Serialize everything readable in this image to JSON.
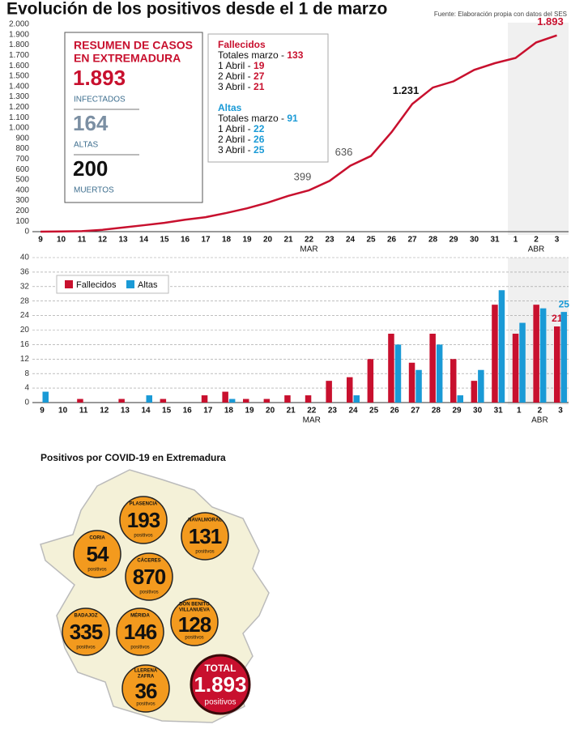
{
  "title": "Evolución de los positivos desde el 1 de marzo",
  "source": "Fuente: Elaboración propia con datos del SES",
  "chart_data": [
    {
      "type": "line",
      "categories": [
        "9",
        "10",
        "11",
        "12",
        "13",
        "14",
        "15",
        "16",
        "17",
        "18",
        "19",
        "20",
        "21",
        "22",
        "23",
        "24",
        "25",
        "26",
        "27",
        "28",
        "29",
        "30",
        "31",
        "1",
        "2",
        "3"
      ],
      "x_groups": [
        "MAR",
        "ABR"
      ],
      "values": [
        0,
        2,
        5,
        18,
        40,
        62,
        85,
        115,
        140,
        180,
        225,
        280,
        345,
        399,
        490,
        636,
        730,
        960,
        1231,
        1390,
        1450,
        1560,
        1625,
        1675,
        1825,
        1893
      ],
      "value_labels": [
        null,
        null,
        null,
        null,
        null,
        null,
        null,
        null,
        null,
        null,
        null,
        null,
        null,
        "399",
        null,
        "636",
        null,
        null,
        "1.231",
        null,
        null,
        null,
        null,
        null,
        null,
        "1.893"
      ],
      "color": "#c8102e",
      "ylim": [
        0,
        2000
      ],
      "yticks": [
        0,
        100,
        200,
        300,
        400,
        500,
        600,
        700,
        800,
        900,
        {
          "value": 1000,
          "label": "1.000"
        },
        {
          "value": 1100,
          "label": "1.100"
        },
        {
          "value": 1200,
          "label": "1.200"
        },
        {
          "value": 1300,
          "label": "1.300"
        },
        {
          "value": 1400,
          "label": "1.400"
        },
        {
          "value": 1500,
          "label": "1.500"
        },
        {
          "value": 1600,
          "label": "1.600"
        },
        {
          "value": 1700,
          "label": "1.700"
        },
        {
          "value": 1800,
          "label": "1.800"
        },
        {
          "value": 1900,
          "label": "1.900"
        },
        {
          "value": 2000,
          "label": "2.000"
        }
      ],
      "grid": false
    },
    {
      "type": "bar",
      "categories": [
        "9",
        "10",
        "11",
        "12",
        "13",
        "14",
        "15",
        "16",
        "17",
        "18",
        "19",
        "20",
        "21",
        "22",
        "23",
        "24",
        "25",
        "26",
        "27",
        "28",
        "29",
        "30",
        "31",
        "1",
        "2",
        "3"
      ],
      "x_groups": [
        "MAR",
        "ABR"
      ],
      "series": [
        {
          "name": "Fallecidos",
          "color": "#c8102e",
          "values": [
            0,
            0,
            1,
            0,
            1,
            0,
            1,
            0,
            2,
            3,
            1,
            1,
            2,
            2,
            6,
            7,
            12,
            19,
            11,
            19,
            12,
            6,
            27,
            19,
            27,
            21
          ],
          "value_labels": [
            null,
            null,
            null,
            null,
            null,
            null,
            null,
            null,
            null,
            null,
            null,
            null,
            null,
            null,
            null,
            null,
            null,
            null,
            null,
            null,
            null,
            null,
            null,
            null,
            null,
            "21"
          ]
        },
        {
          "name": "Altas",
          "color": "#1a9ad6",
          "values": [
            3,
            0,
            0,
            0,
            0,
            2,
            0,
            0,
            0,
            1,
            0,
            0,
            0,
            0,
            0,
            2,
            0,
            16,
            9,
            16,
            2,
            9,
            31,
            22,
            26,
            25
          ],
          "value_labels": [
            null,
            null,
            null,
            null,
            null,
            null,
            null,
            null,
            null,
            null,
            null,
            null,
            null,
            null,
            null,
            null,
            null,
            null,
            null,
            null,
            null,
            null,
            null,
            null,
            null,
            "25"
          ]
        }
      ],
      "ylim": [
        0,
        40
      ],
      "yticks": [
        0,
        4,
        8,
        12,
        16,
        20,
        24,
        28,
        32,
        36,
        40
      ],
      "grid": true,
      "legend": "top-left"
    }
  ],
  "summary": {
    "title_lines": [
      "RESUMEN DE CASOS",
      "EN EXTREMADURA"
    ],
    "items": [
      {
        "value": "1.893",
        "label": "INFECTADOS"
      },
      {
        "value": "164",
        "label": "ALTAS"
      },
      {
        "value": "200",
        "label": "MUERTOS"
      }
    ]
  },
  "details": [
    {
      "heading": "Fallecidos",
      "lines": [
        {
          "label": "Totales marzo - ",
          "value": "133"
        },
        {
          "label": "1 Abril - ",
          "value": "19"
        },
        {
          "label": "2 Abril - ",
          "value": "27"
        },
        {
          "label": "3 Abril - ",
          "value": "21"
        }
      ]
    },
    {
      "heading": "Altas",
      "lines": [
        {
          "label": "Totales marzo - ",
          "value": "91"
        },
        {
          "label": "1 Abril - ",
          "value": "22"
        },
        {
          "label": "2 Abril - ",
          "value": "26"
        },
        {
          "label": "3 Abril - ",
          "value": "25"
        }
      ]
    }
  ],
  "map": {
    "title": "Positivos por COVID-19 en Extremadura",
    "unit": "positivos",
    "areas": [
      {
        "name_lines": [
          "PLASENCIA"
        ],
        "value": "193"
      },
      {
        "name_lines": [
          "NAVALMORAL"
        ],
        "value": "131"
      },
      {
        "name_lines": [
          "CORIA"
        ],
        "value": "54"
      },
      {
        "name_lines": [
          "CÁCERES"
        ],
        "value": "870"
      },
      {
        "name_lines": [
          "DON BENITO",
          "VILLANUEVA"
        ],
        "value": "128"
      },
      {
        "name_lines": [
          "BADAJOZ"
        ],
        "value": "335"
      },
      {
        "name_lines": [
          "MÉRIDA"
        ],
        "value": "146"
      },
      {
        "name_lines": [
          "LLERENA",
          "ZAFRA"
        ],
        "value": "36"
      }
    ],
    "total": {
      "label": "TOTAL",
      "value": "1.893"
    }
  }
}
